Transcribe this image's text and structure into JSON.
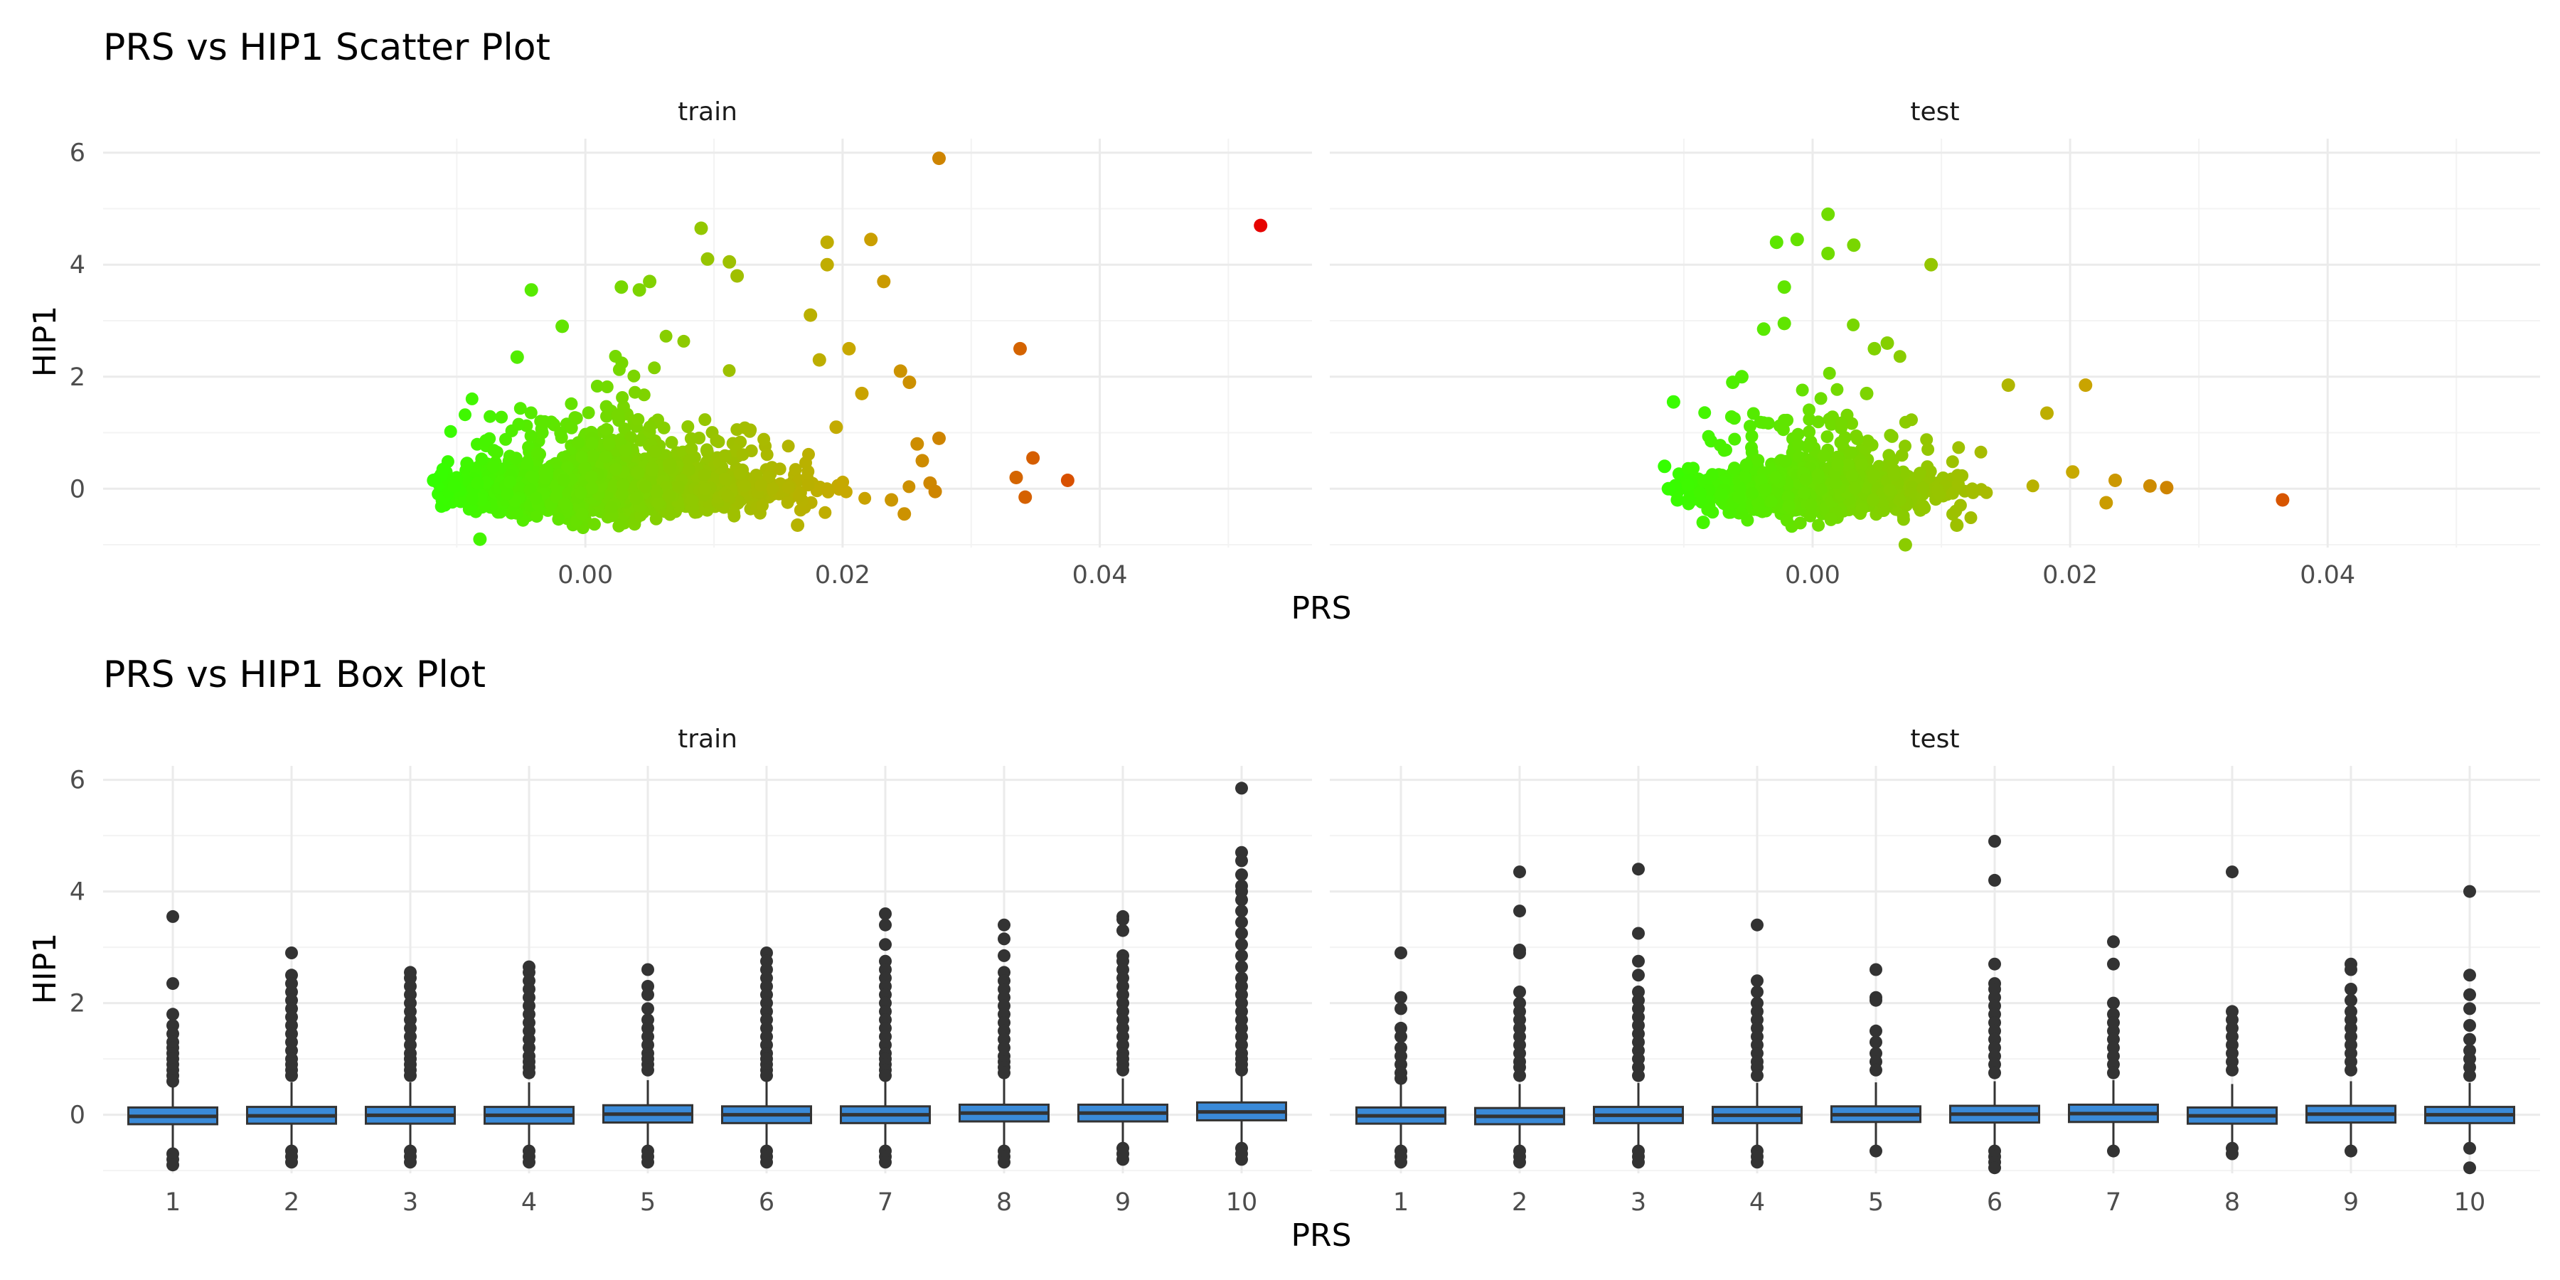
{
  "chart_data": [
    {
      "type": "scatter",
      "title": "PRS vs HIP1 Scatter Plot",
      "xlabel": "PRS",
      "ylabel": "HIP1",
      "facets": [
        "train",
        "test"
      ],
      "xlim": [
        -0.0375,
        0.0565
      ],
      "ylim": [
        -1.05,
        6.25
      ],
      "x_ticks": [
        "0.00",
        "0.02",
        "0.04"
      ],
      "x_tick_values": [
        0,
        0.02,
        0.04
      ],
      "y_ticks": [
        "0",
        "2",
        "4",
        "6"
      ],
      "y_tick_values": [
        0,
        2,
        4,
        6
      ],
      "grid": true,
      "color_scale": {
        "low": "#33ff00",
        "mid": "#c8a800",
        "high": "#e60000",
        "range": [
          -0.012,
          0.053
        ]
      },
      "series": [
        {
          "facet": "train",
          "points": [
            [
              0.0525,
              4.7
            ],
            [
              0.0275,
              5.9
            ],
            [
              0.0335,
              0.2
            ],
            [
              0.0338,
              2.5
            ],
            [
              0.0342,
              -0.15
            ],
            [
              0.0348,
              0.55
            ],
            [
              0.0375,
              0.15
            ],
            [
              0.009,
              4.65
            ],
            [
              0.0095,
              4.1
            ],
            [
              0.0112,
              4.05
            ],
            [
              0.0118,
              3.8
            ],
            [
              0.0188,
              4.4
            ],
            [
              0.0188,
              4.0
            ],
            [
              0.0222,
              4.45
            ],
            [
              0.0232,
              3.7
            ],
            [
              0.0175,
              3.1
            ],
            [
              0.0205,
              2.5
            ],
            [
              0.005,
              3.7
            ],
            [
              0.0042,
              3.55
            ],
            [
              0.0028,
              3.6
            ],
            [
              -0.0042,
              3.55
            ],
            [
              -0.0053,
              2.35
            ],
            [
              -0.0018,
              2.9
            ],
            [
              0.0182,
              2.3
            ],
            [
              0.0245,
              2.1
            ],
            [
              0.0252,
              1.9
            ],
            [
              0.0215,
              1.7
            ],
            [
              0.0195,
              1.1
            ],
            [
              0.0258,
              0.8
            ],
            [
              0.0262,
              0.5
            ],
            [
              0.0268,
              0.1
            ],
            [
              0.0272,
              -0.05
            ],
            [
              0.0238,
              -0.2
            ],
            [
              0.0248,
              -0.45
            ],
            [
              -0.0112,
              0.25
            ],
            [
              -0.0118,
              0.15
            ],
            [
              -0.0102,
              0.05
            ],
            [
              -0.0082,
              -0.9
            ],
            [
              -0.0092,
              0.45
            ],
            [
              0.0165,
              -0.65
            ],
            [
              0.0275,
              0.9
            ]
          ]
        },
        {
          "facet": "test",
          "points": [
            [
              0.0365,
              -0.2
            ],
            [
              0.0275,
              0.02
            ],
            [
              0.0262,
              0.05
            ],
            [
              0.0212,
              1.85
            ],
            [
              0.0182,
              1.35
            ],
            [
              0.0152,
              1.85
            ],
            [
              0.0092,
              4.0
            ],
            [
              0.0012,
              4.9
            ],
            [
              0.0032,
              4.35
            ],
            [
              0.0012,
              4.2
            ],
            [
              -0.0012,
              4.45
            ],
            [
              -0.0028,
              4.4
            ],
            [
              -0.0022,
              3.6
            ],
            [
              -0.0038,
              2.85
            ],
            [
              -0.0022,
              2.95
            ],
            [
              0.0042,
              1.7
            ],
            [
              0.0048,
              2.5
            ],
            [
              0.0058,
              2.6
            ],
            [
              -0.0055,
              2.0
            ],
            [
              -0.0062,
              1.9
            ],
            [
              -0.0108,
              1.55
            ],
            [
              -0.0115,
              0.4
            ],
            [
              -0.0112,
              0.0
            ],
            [
              -0.0105,
              -0.2
            ],
            [
              -0.0085,
              -0.6
            ],
            [
              0.0072,
              -1.0
            ],
            [
              0.0112,
              -0.65
            ],
            [
              0.0235,
              0.15
            ],
            [
              0.0228,
              -0.25
            ],
            [
              0.0202,
              0.3
            ]
          ]
        }
      ]
    },
    {
      "type": "box",
      "title": "PRS vs HIP1 Box Plot",
      "xlabel": "PRS",
      "ylabel": "HIP1",
      "facets": [
        "train",
        "test"
      ],
      "categories": [
        "1",
        "2",
        "3",
        "4",
        "5",
        "6",
        "7",
        "8",
        "9",
        "10"
      ],
      "ylim": [
        -1.05,
        6.25
      ],
      "y_ticks": [
        "0",
        "2",
        "4",
        "6"
      ],
      "y_tick_values": [
        0,
        2,
        4,
        6
      ],
      "box_fill": "#3a8ad8",
      "grid": true,
      "series": [
        {
          "facet": "train",
          "boxes": [
            {
              "q1": -0.17,
              "median": -0.03,
              "q3": 0.13,
              "whisker_low": -0.6,
              "whisker_high": 0.55,
              "outliers": [
                3.55,
                2.35,
                1.8,
                1.6,
                1.45,
                1.3,
                1.2,
                1.1,
                1.0,
                0.9,
                0.8,
                0.7,
                0.6,
                -0.7,
                -0.8,
                -0.9
              ]
            },
            {
              "q1": -0.16,
              "median": -0.02,
              "q3": 0.14,
              "whisker_low": -0.6,
              "whisker_high": 0.58,
              "outliers": [
                2.9,
                2.5,
                2.35,
                2.2,
                2.05,
                1.9,
                1.75,
                1.6,
                1.45,
                1.3,
                1.15,
                1.0,
                0.9,
                0.8,
                0.7,
                -0.65,
                -0.75,
                -0.85
              ]
            },
            {
              "q1": -0.16,
              "median": -0.01,
              "q3": 0.14,
              "whisker_low": -0.6,
              "whisker_high": 0.58,
              "outliers": [
                2.55,
                2.45,
                2.3,
                2.15,
                2.0,
                1.85,
                1.7,
                1.55,
                1.4,
                1.25,
                1.1,
                1.0,
                0.9,
                0.8,
                0.7,
                -0.65,
                -0.75,
                -0.85
              ]
            },
            {
              "q1": -0.16,
              "median": -0.01,
              "q3": 0.14,
              "whisker_low": -0.6,
              "whisker_high": 0.58,
              "outliers": [
                2.65,
                2.55,
                2.4,
                2.25,
                2.1,
                1.95,
                1.8,
                1.65,
                1.5,
                1.35,
                1.2,
                1.05,
                0.95,
                0.85,
                0.75,
                -0.65,
                -0.75,
                -0.85
              ]
            },
            {
              "q1": -0.14,
              "median": 0.01,
              "q3": 0.17,
              "whisker_low": -0.6,
              "whisker_high": 0.62,
              "outliers": [
                2.6,
                2.3,
                2.15,
                1.9,
                1.7,
                1.55,
                1.4,
                1.25,
                1.1,
                1.0,
                0.9,
                0.8,
                -0.65,
                -0.75,
                -0.85
              ]
            },
            {
              "q1": -0.15,
              "median": 0.0,
              "q3": 0.15,
              "whisker_low": -0.6,
              "whisker_high": 0.6,
              "outliers": [
                2.9,
                2.75,
                2.6,
                2.45,
                2.3,
                2.15,
                2.0,
                1.85,
                1.7,
                1.55,
                1.4,
                1.25,
                1.1,
                1.0,
                0.9,
                0.8,
                0.7,
                -0.65,
                -0.75,
                -0.85
              ]
            },
            {
              "q1": -0.15,
              "median": 0.0,
              "q3": 0.15,
              "whisker_low": -0.6,
              "whisker_high": 0.6,
              "outliers": [
                3.6,
                3.4,
                3.05,
                2.75,
                2.6,
                2.45,
                2.3,
                2.15,
                2.0,
                1.85,
                1.7,
                1.55,
                1.4,
                1.25,
                1.1,
                1.0,
                0.9,
                0.8,
                0.7,
                -0.65,
                -0.75,
                -0.85
              ]
            },
            {
              "q1": -0.12,
              "median": 0.03,
              "q3": 0.18,
              "whisker_low": -0.58,
              "whisker_high": 0.65,
              "outliers": [
                3.4,
                3.15,
                2.85,
                2.55,
                2.4,
                2.25,
                2.1,
                1.95,
                1.8,
                1.65,
                1.5,
                1.35,
                1.2,
                1.05,
                0.95,
                0.85,
                0.75,
                -0.65,
                -0.75,
                -0.85
              ]
            },
            {
              "q1": -0.12,
              "median": 0.03,
              "q3": 0.18,
              "whisker_low": -0.58,
              "whisker_high": 0.65,
              "outliers": [
                3.55,
                3.5,
                3.3,
                2.85,
                2.75,
                2.6,
                2.45,
                2.3,
                2.15,
                2.0,
                1.85,
                1.7,
                1.55,
                1.4,
                1.25,
                1.1,
                1.0,
                0.9,
                0.8,
                -0.6,
                -0.7,
                -0.8
              ]
            },
            {
              "q1": -0.1,
              "median": 0.05,
              "q3": 0.22,
              "whisker_low": -0.55,
              "whisker_high": 0.7,
              "outliers": [
                5.85,
                4.7,
                4.55,
                4.3,
                4.1,
                4.0,
                3.85,
                3.65,
                3.45,
                3.25,
                3.05,
                2.85,
                2.65,
                2.45,
                2.3,
                2.15,
                2.0,
                1.85,
                1.7,
                1.55,
                1.4,
                1.25,
                1.1,
                1.0,
                0.9,
                0.8,
                -0.6,
                -0.7,
                -0.8
              ]
            }
          ]
        },
        {
          "facet": "test",
          "boxes": [
            {
              "q1": -0.16,
              "median": -0.02,
              "q3": 0.13,
              "whisker_low": -0.6,
              "whisker_high": 0.55,
              "outliers": [
                2.9,
                2.1,
                1.9,
                1.55,
                1.4,
                1.2,
                1.05,
                0.9,
                0.75,
                0.65,
                -0.65,
                -0.75,
                -0.85
              ]
            },
            {
              "q1": -0.17,
              "median": -0.03,
              "q3": 0.12,
              "whisker_low": -0.6,
              "whisker_high": 0.55,
              "outliers": [
                4.35,
                3.65,
                2.95,
                2.9,
                2.2,
                2.0,
                1.85,
                1.7,
                1.55,
                1.4,
                1.25,
                1.1,
                0.95,
                0.85,
                0.7,
                -0.65,
                -0.75,
                -0.85
              ]
            },
            {
              "q1": -0.15,
              "median": -0.01,
              "q3": 0.14,
              "whisker_low": -0.6,
              "whisker_high": 0.57,
              "outliers": [
                4.4,
                3.25,
                2.75,
                2.5,
                2.2,
                2.05,
                1.9,
                1.75,
                1.6,
                1.45,
                1.3,
                1.15,
                1.0,
                0.85,
                0.7,
                -0.65,
                -0.75,
                -0.85
              ]
            },
            {
              "q1": -0.15,
              "median": -0.01,
              "q3": 0.14,
              "whisker_low": -0.6,
              "whisker_high": 0.57,
              "outliers": [
                3.4,
                2.4,
                2.2,
                2.0,
                1.85,
                1.7,
                1.55,
                1.4,
                1.25,
                1.1,
                0.95,
                0.85,
                0.7,
                -0.65,
                -0.75,
                -0.85
              ]
            },
            {
              "q1": -0.13,
              "median": 0.0,
              "q3": 0.15,
              "whisker_low": -0.6,
              "whisker_high": 0.58,
              "outliers": [
                2.6,
                2.1,
                2.05,
                1.5,
                1.3,
                1.1,
                0.95,
                0.8,
                -0.65
              ]
            },
            {
              "q1": -0.14,
              "median": 0.01,
              "q3": 0.16,
              "whisker_low": -0.6,
              "whisker_high": 0.6,
              "outliers": [
                4.9,
                4.2,
                2.7,
                2.35,
                2.25,
                2.1,
                1.95,
                1.8,
                1.65,
                1.5,
                1.35,
                1.2,
                1.05,
                0.9,
                0.75,
                -0.65,
                -0.75,
                -0.85,
                -0.95
              ]
            },
            {
              "q1": -0.13,
              "median": 0.02,
              "q3": 0.18,
              "whisker_low": -0.6,
              "whisker_high": 0.62,
              "outliers": [
                3.1,
                2.7,
                2.0,
                1.8,
                1.65,
                1.5,
                1.35,
                1.2,
                1.05,
                0.9,
                0.75,
                -0.65
              ]
            },
            {
              "q1": -0.16,
              "median": -0.02,
              "q3": 0.13,
              "whisker_low": -0.6,
              "whisker_high": 0.55,
              "outliers": [
                4.35,
                1.85,
                1.7,
                1.55,
                1.4,
                1.25,
                1.1,
                0.95,
                0.8,
                -0.6,
                -0.7
              ]
            },
            {
              "q1": -0.14,
              "median": 0.01,
              "q3": 0.16,
              "whisker_low": -0.6,
              "whisker_high": 0.6,
              "outliers": [
                2.7,
                2.6,
                2.25,
                2.05,
                1.85,
                1.7,
                1.55,
                1.4,
                1.25,
                1.1,
                0.95,
                0.8,
                -0.65
              ]
            },
            {
              "q1": -0.15,
              "median": 0.0,
              "q3": 0.14,
              "whisker_low": -0.6,
              "whisker_high": 0.57,
              "outliers": [
                4.0,
                2.5,
                2.15,
                1.9,
                1.6,
                1.35,
                1.15,
                1.0,
                0.85,
                0.7,
                -0.6,
                -0.95
              ]
            }
          ]
        }
      ]
    }
  ]
}
